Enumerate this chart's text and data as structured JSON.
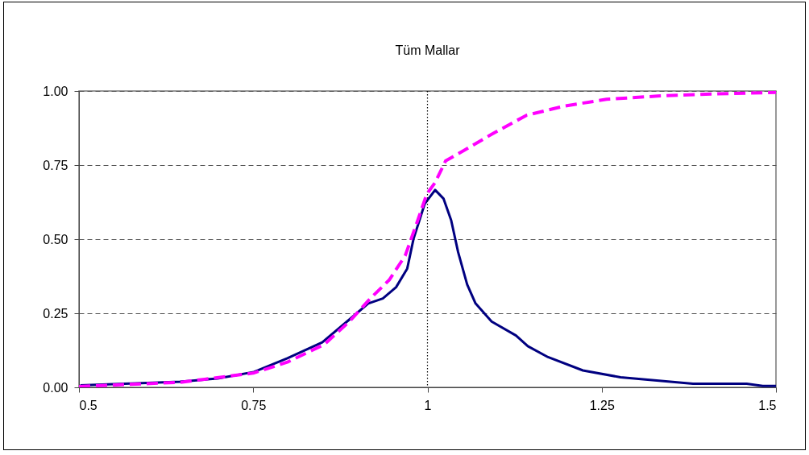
{
  "chart_data": {
    "type": "line",
    "title": "Tüm Mallar",
    "xlim": [
      0.5,
      1.5
    ],
    "xticks": [
      0.5,
      0.75,
      1,
      1.25,
      1.5
    ],
    "ylim": [
      0,
      1
    ],
    "yticks": [
      {
        "value": 0,
        "label": "0.00"
      },
      {
        "value": 0.25,
        "label": "0.25"
      },
      {
        "value": 0.5,
        "label": "0.50"
      },
      {
        "value": 0.75,
        "label": "0.75"
      },
      {
        "value": 1,
        "label": "1.00"
      }
    ],
    "grid": "y",
    "marker": "none",
    "ref_lines": [
      {
        "axis": "x",
        "value": 1,
        "color": "#000000",
        "line_style": "dotted"
      }
    ],
    "series": [
      {
        "color": "#000080",
        "line_style": "solid",
        "x": [
          0.502,
          0.645,
          0.699,
          0.751,
          0.799,
          0.849,
          0.888,
          0.915,
          0.936,
          0.955,
          0.971,
          0.98,
          0.996,
          1.011,
          1.023,
          1.034,
          1.044,
          1.057,
          1.069,
          1.092,
          1.127,
          1.144,
          1.173,
          1.223,
          1.277,
          1.381,
          1.458,
          1.481,
          1.5
        ],
        "values": [
          0.007,
          0.019,
          0.03,
          0.052,
          0.098,
          0.152,
          0.229,
          0.283,
          0.3,
          0.338,
          0.401,
          0.501,
          0.619,
          0.666,
          0.637,
          0.564,
          0.456,
          0.347,
          0.283,
          0.222,
          0.175,
          0.139,
          0.102,
          0.057,
          0.034,
          0.012,
          0.012,
          0.005,
          0.005
        ]
      },
      {
        "color": "#ff00ff",
        "line_style": "dashed",
        "x": [
          0.5,
          0.645,
          0.75,
          0.799,
          0.852,
          0.888,
          0.918,
          0.945,
          0.968,
          0.983,
          0.999,
          1.011,
          1.026,
          1.053,
          1.092,
          1.142,
          1.196,
          1.257,
          1.33,
          1.407,
          1.5
        ],
        "values": [
          0.003,
          0.017,
          0.048,
          0.085,
          0.145,
          0.222,
          0.3,
          0.362,
          0.444,
          0.543,
          0.652,
          0.691,
          0.764,
          0.8,
          0.854,
          0.918,
          0.949,
          0.972,
          0.983,
          0.99,
          0.995
        ]
      }
    ]
  }
}
